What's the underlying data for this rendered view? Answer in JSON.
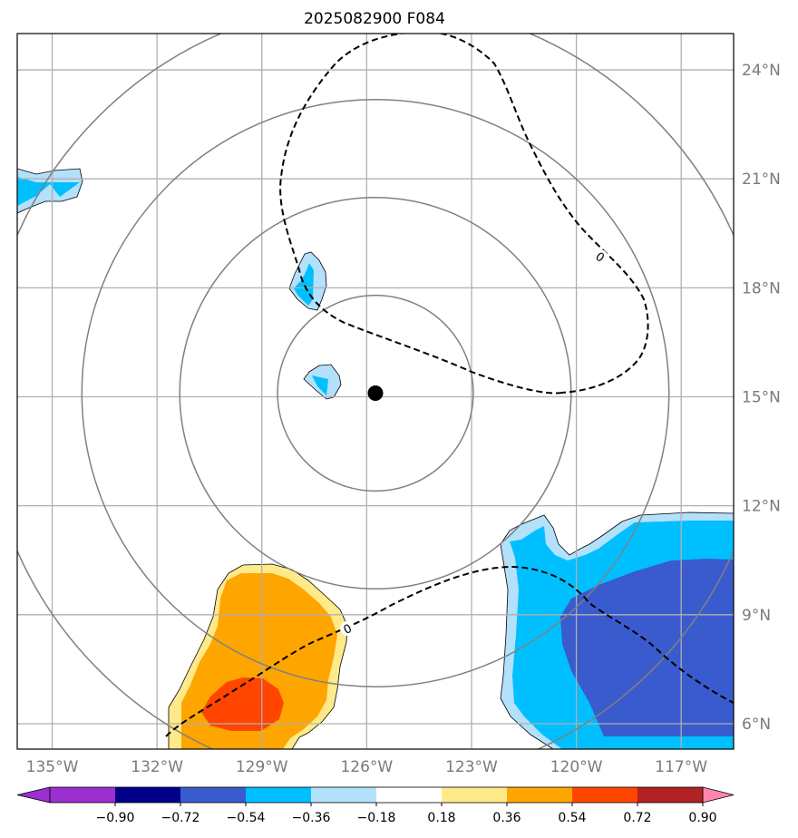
{
  "title": "2025082900 F084",
  "map": {
    "lon_range": [
      -136,
      -115.5
    ],
    "lat_range": [
      5.3,
      25.0
    ],
    "lon_ticks": [
      {
        "value": -135,
        "label": "135°W"
      },
      {
        "value": -132,
        "label": "132°W"
      },
      {
        "value": -129,
        "label": "129°W"
      },
      {
        "value": -126,
        "label": "126°W"
      },
      {
        "value": -123,
        "label": "123°W"
      },
      {
        "value": -120,
        "label": "120°W"
      },
      {
        "value": -117,
        "label": "117°W"
      }
    ],
    "lat_ticks": [
      {
        "value": 6,
        "label": "6°N"
      },
      {
        "value": 9,
        "label": "9°N"
      },
      {
        "value": 12,
        "label": "12°N"
      },
      {
        "value": 15,
        "label": "15°N"
      },
      {
        "value": 18,
        "label": "18°N"
      },
      {
        "value": 21,
        "label": "21°N"
      },
      {
        "value": 24,
        "label": "24°N"
      }
    ],
    "grid": true,
    "center_marker": {
      "lon": -125.75,
      "lat": 15.1
    },
    "range_ring_degrees": [
      2.8,
      5.6,
      8.4,
      11.2
    ],
    "contour_label": "0",
    "colors": {
      "grid": "#b0b0b0",
      "ring": "#808080",
      "dashed_contour": "#000000",
      "lightblue": "#b3e0fa",
      "cyan": "#00bfff",
      "royalblue": "#3a5bcd",
      "yellow": "#ffea8a",
      "orange": "#ffa500",
      "redorange": "#ff4500"
    }
  },
  "colorbar": {
    "levels": [
      "−0.90",
      "−0.72",
      "−0.54",
      "−0.36",
      "−0.18",
      "0.18",
      "0.36",
      "0.54",
      "0.72",
      "0.90"
    ],
    "colors": [
      "#9b2fcf",
      "#00008b",
      "#3a5bcd",
      "#00bfff",
      "#b3e0fa",
      "#ffffff",
      "#ffea8a",
      "#ffa500",
      "#ff4500",
      "#b22222"
    ],
    "under_color": "#9b2fcf",
    "over_color": "#ff85b0"
  }
}
